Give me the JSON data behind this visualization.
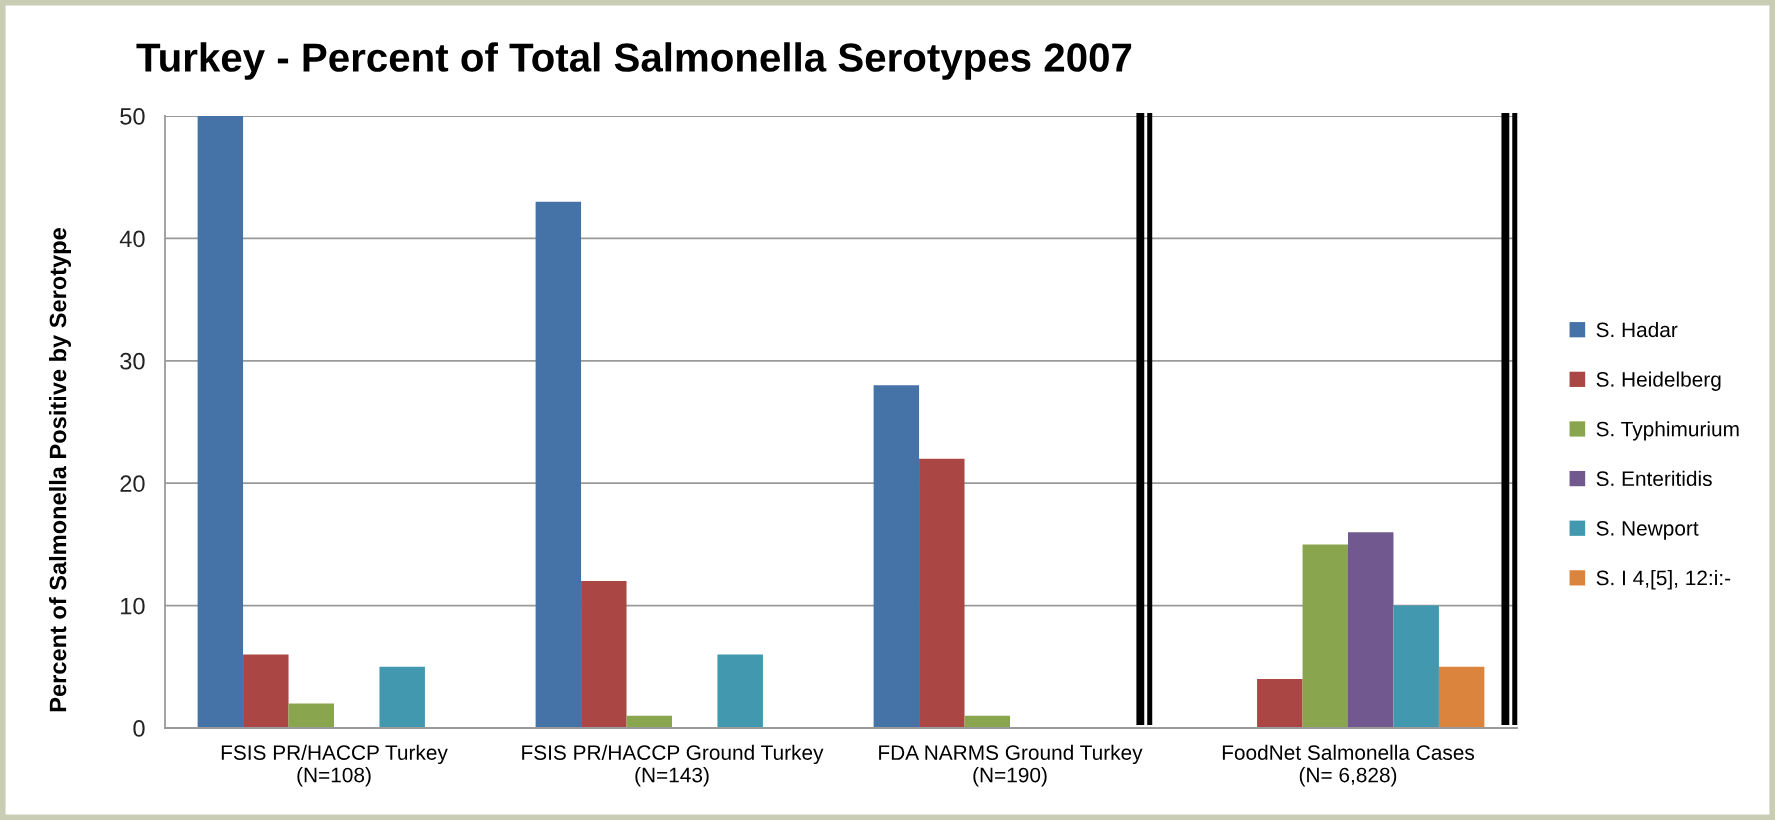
{
  "chart_data": {
    "type": "bar",
    "title": "Turkey - Percent of Total Salmonella Serotypes 2007",
    "ylabel": "Percent of Salmonella Positive by Serotype",
    "categories": [
      "FSIS PR/HACCP Turkey\n(N=108)",
      "FSIS PR/HACCP Ground Turkey\n(N=143)",
      "FDA NARMS Ground Turkey\n(N=190)",
      "FoodNet Salmonella Cases\n(N= 6,828)"
    ],
    "series": [
      {
        "name": "S. Hadar",
        "color": "#4572a7",
        "values": [
          50,
          43,
          28,
          null
        ]
      },
      {
        "name": "S. Heidelberg",
        "color": "#aa4643",
        "values": [
          6,
          12,
          22,
          4
        ]
      },
      {
        "name": "S. Typhimurium",
        "color": "#89a54e",
        "values": [
          2,
          1,
          1,
          15
        ]
      },
      {
        "name": "S. Enteritidis",
        "color": "#71588f",
        "values": [
          null,
          null,
          null,
          16
        ]
      },
      {
        "name": "S. Newport",
        "color": "#4198af",
        "values": [
          5,
          6,
          null,
          10
        ]
      },
      {
        "name": "S. I 4,[5], 12:i:-",
        "color": "#db843d",
        "values": [
          null,
          null,
          null,
          5
        ]
      }
    ],
    "ylim": [
      0,
      50
    ],
    "yticks": [
      0,
      10,
      20,
      30,
      40,
      50
    ],
    "grid": "y",
    "legend": "right"
  }
}
